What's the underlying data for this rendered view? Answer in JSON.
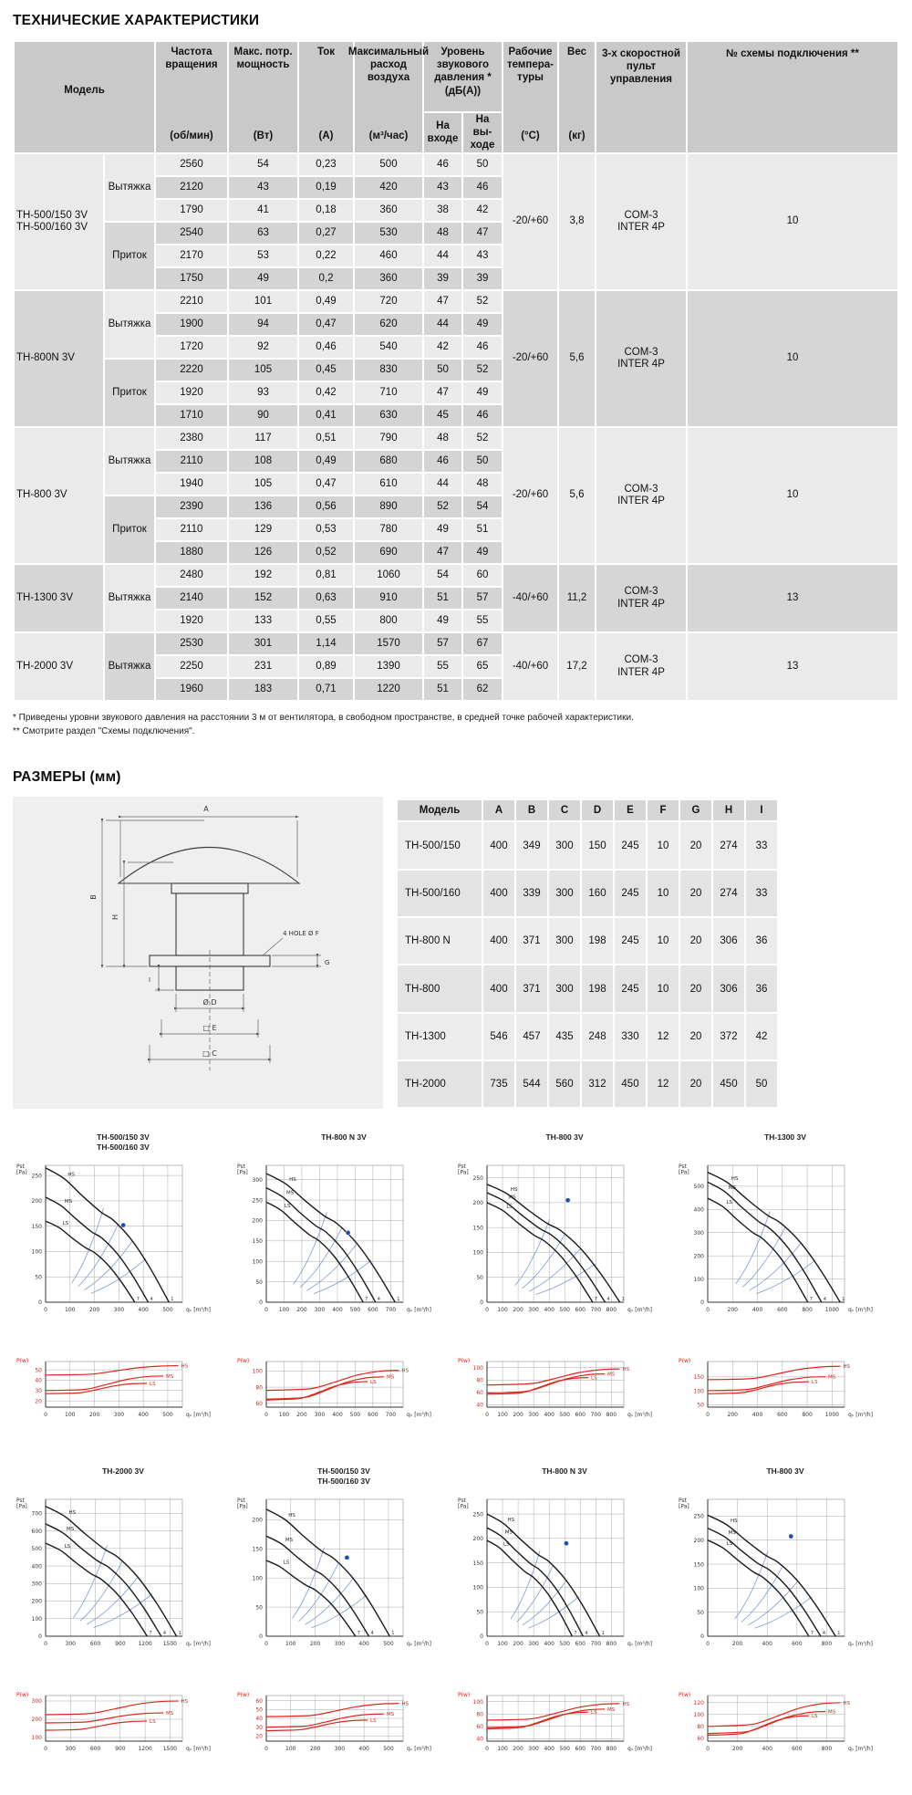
{
  "page": {
    "title": "ТЕХНИЧЕСКИЕ ХАРАКТЕРИСТИКИ",
    "dimensions_title": "РАЗМЕРЫ (мм)",
    "footnote1": "* Приведены уровни звукового давления на расстоянии 3 м от вентилятора, в свободном пространстве, в средней точке рабочей характеристики.",
    "footnote2": "** Смотрите раздел \"Схемы подключения\"."
  },
  "spec_table": {
    "col_headers": {
      "model": "Модель",
      "speed_title": "Частота вращения",
      "speed_unit": "(об/мин)",
      "power_title": "Макс. потр. мощность",
      "power_unit": "(Вт)",
      "current_title": "Ток",
      "current_unit": "(А)",
      "airflow_title": "Максимальный расход воздуха",
      "airflow_unit": "(м³/час)",
      "noise_title": "Уровень звукового давления *",
      "noise_unit": "(дБ(А))",
      "noise_in": "На входе",
      "noise_out": "На вы-ходе",
      "temp_title": "Рабочие темпера-туры",
      "temp_unit": "(°С)",
      "weight_title": "Вес",
      "weight_unit": "(кг)",
      "control_title": "3-х скоростной пульт управления",
      "scheme_title": "№ схемы подключения **"
    },
    "blocks": [
      {
        "model": [
          "ТН-500/150 3V",
          "ТН-500/160 3V"
        ],
        "temp": "-20/+60",
        "weight": "3,8",
        "control": [
          "COM-3",
          "INTER 4P"
        ],
        "scheme": "10",
        "groups": [
          {
            "mode": "Вытяжка",
            "rows": [
              [
                "2560",
                "54",
                "0,23",
                "500",
                "46",
                "50"
              ],
              [
                "2120",
                "43",
                "0,19",
                "420",
                "43",
                "46"
              ],
              [
                "1790",
                "41",
                "0,18",
                "360",
                "38",
                "42"
              ]
            ]
          },
          {
            "mode": "Приток",
            "rows": [
              [
                "2540",
                "63",
                "0,27",
                "530",
                "48",
                "47"
              ],
              [
                "2170",
                "53",
                "0,22",
                "460",
                "44",
                "43"
              ],
              [
                "1750",
                "49",
                "0,2",
                "360",
                "39",
                "39"
              ]
            ]
          }
        ]
      },
      {
        "model": [
          "ТН-800N 3V"
        ],
        "temp": "-20/+60",
        "weight": "5,6",
        "control": [
          "COM-3",
          "INTER 4P"
        ],
        "scheme": "10",
        "groups": [
          {
            "mode": "Вытяжка",
            "rows": [
              [
                "2210",
                "101",
                "0,49",
                "720",
                "47",
                "52"
              ],
              [
                "1900",
                "94",
                "0,47",
                "620",
                "44",
                "49"
              ],
              [
                "1720",
                "92",
                "0,46",
                "540",
                "42",
                "46"
              ]
            ]
          },
          {
            "mode": "Приток",
            "rows": [
              [
                "2220",
                "105",
                "0,45",
                "830",
                "50",
                "52"
              ],
              [
                "1920",
                "93",
                "0,42",
                "710",
                "47",
                "49"
              ],
              [
                "1710",
                "90",
                "0,41",
                "630",
                "45",
                "46"
              ]
            ]
          }
        ]
      },
      {
        "model": [
          "ТН-800 3V"
        ],
        "temp": "-20/+60",
        "weight": "5,6",
        "control": [
          "COM-3",
          "INTER 4P"
        ],
        "scheme": "10",
        "groups": [
          {
            "mode": "Вытяжка",
            "rows": [
              [
                "2380",
                "117",
                "0,51",
                "790",
                "48",
                "52"
              ],
              [
                "2110",
                "108",
                "0,49",
                "680",
                "46",
                "50"
              ],
              [
                "1940",
                "105",
                "0,47",
                "610",
                "44",
                "48"
              ]
            ]
          },
          {
            "mode": "Приток",
            "rows": [
              [
                "2390",
                "136",
                "0,56",
                "890",
                "52",
                "54"
              ],
              [
                "2110",
                "129",
                "0,53",
                "780",
                "49",
                "51"
              ],
              [
                "1880",
                "126",
                "0,52",
                "690",
                "47",
                "49"
              ]
            ]
          }
        ]
      },
      {
        "model": [
          "ТН-1300 3V"
        ],
        "temp": "-40/+60",
        "weight": "11,2",
        "control": [
          "COM-3",
          "INTER 4P"
        ],
        "scheme": "13",
        "groups": [
          {
            "mode": "Вытяжка",
            "rows": [
              [
                "2480",
                "192",
                "0,81",
                "1060",
                "54",
                "60"
              ],
              [
                "2140",
                "152",
                "0,63",
                "910",
                "51",
                "57"
              ],
              [
                "1920",
                "133",
                "0,55",
                "800",
                "49",
                "55"
              ]
            ]
          }
        ]
      },
      {
        "model": [
          "ТН-2000 3V"
        ],
        "temp": "-40/+60",
        "weight": "17,2",
        "control": [
          "COM-3",
          "INTER 4P"
        ],
        "scheme": "13",
        "groups": [
          {
            "mode": "Вытяжка",
            "rows": [
              [
                "2530",
                "301",
                "1,14",
                "1570",
                "57",
                "67"
              ],
              [
                "2250",
                "231",
                "0,89",
                "1390",
                "55",
                "65"
              ],
              [
                "1960",
                "183",
                "0,71",
                "1220",
                "51",
                "62"
              ]
            ]
          }
        ]
      }
    ]
  },
  "dimensions": {
    "headers": [
      "Модель",
      "A",
      "B",
      "C",
      "D",
      "E",
      "F",
      "G",
      "H",
      "I"
    ],
    "rows": [
      [
        "TH-500/150",
        "400",
        "349",
        "300",
        "150",
        "245",
        "10",
        "20",
        "274",
        "33"
      ],
      [
        "TH-500/160",
        "400",
        "339",
        "300",
        "160",
        "245",
        "10",
        "20",
        "274",
        "33"
      ],
      [
        "TH-800 N",
        "400",
        "371",
        "300",
        "198",
        "245",
        "10",
        "20",
        "306",
        "36"
      ],
      [
        "TH-800",
        "400",
        "371",
        "300",
        "198",
        "245",
        "10",
        "20",
        "306",
        "36"
      ],
      [
        "TH-1300",
        "546",
        "457",
        "435",
        "248",
        "330",
        "12",
        "20",
        "372",
        "42"
      ],
      [
        "TH-2000",
        "735",
        "544",
        "560",
        "312",
        "450",
        "12",
        "20",
        "450",
        "50"
      ]
    ],
    "drawing_labels": {
      "A": "A",
      "B": "B",
      "H": "H",
      "holes": "4 HOLE Ø F",
      "G": "G",
      "I": "I",
      "D": "Ø D",
      "E": "□ E",
      "C": "□ C"
    }
  },
  "charts_meta": {
    "pressure_ylabel_lines": [
      "Pst",
      "[Pa]"
    ],
    "power_ylabel": "P(w)",
    "xlabel": "qᵥ [m³/h]",
    "curve_labels": [
      "HS",
      "MS",
      "LS"
    ],
    "curve_end_digits": [
      "1",
      "4",
      "7"
    ]
  },
  "charts": [
    {
      "title": [
        "TH-500/150 3V",
        "TH-500/160 3V"
      ],
      "p": {
        "ymax": 270,
        "yticks": [
          0,
          50,
          100,
          150,
          200,
          250
        ],
        "xmax": 560,
        "xticks": [
          0,
          100,
          200,
          300,
          400,
          500
        ],
        "curves": [
          {
            "name": "HS",
            "p0": 265,
            "q1": 505
          },
          {
            "name": "MS",
            "p0": 207,
            "q1": 420
          },
          {
            "name": "LS",
            "p0": 160,
            "q1": 365
          }
        ],
        "dot": [
          318,
          152
        ]
      },
      "w": {
        "yticks": [
          20,
          30,
          40,
          50
        ],
        "ymin": 14,
        "ymax": 58,
        "curves": [
          {
            "name": "HS",
            "v0": 45,
            "v1": 54
          },
          {
            "name": "MS",
            "v0": 30,
            "v1": 44
          },
          {
            "name": "LS",
            "v0": 27,
            "v1": 37
          }
        ]
      }
    },
    {
      "title": [
        "TH-800 N 3V"
      ],
      "p": {
        "ymax": 335,
        "yticks": [
          0,
          50,
          100,
          150,
          200,
          250,
          300
        ],
        "xmax": 770,
        "xticks": [
          0,
          100,
          200,
          300,
          400,
          500,
          600,
          700
        ],
        "curves": [
          {
            "name": "HS",
            "p0": 315,
            "q1": 725
          },
          {
            "name": "MS",
            "p0": 280,
            "q1": 615
          },
          {
            "name": "LS",
            "p0": 245,
            "q1": 545
          }
        ],
        "dot": [
          460,
          170
        ]
      },
      "w": {
        "yticks": [
          60,
          80,
          100
        ],
        "ymin": 55,
        "ymax": 112,
        "curves": [
          {
            "name": "HS",
            "v0": 76,
            "v1": 101
          },
          {
            "name": "MS",
            "v0": 65,
            "v1": 93
          },
          {
            "name": "LS",
            "v0": 64,
            "v1": 87
          }
        ]
      }
    },
    {
      "title": [
        "TH-800 3V"
      ],
      "p": {
        "ymax": 275,
        "yticks": [
          0,
          50,
          100,
          150,
          200,
          250
        ],
        "xmax": 880,
        "xticks": [
          0,
          100,
          200,
          300,
          400,
          500,
          600,
          700,
          800
        ],
        "curves": [
          {
            "name": "HS",
            "p0": 237,
            "q1": 855
          },
          {
            "name": "MS",
            "p0": 220,
            "q1": 760
          },
          {
            "name": "LS",
            "p0": 200,
            "q1": 680
          }
        ],
        "dot": [
          520,
          205
        ]
      },
      "w": {
        "yticks": [
          40,
          60,
          80,
          100
        ],
        "ymin": 36,
        "ymax": 110,
        "curves": [
          {
            "name": "HS",
            "v0": 72,
            "v1": 98
          },
          {
            "name": "MS",
            "v0": 59,
            "v1": 90
          },
          {
            "name": "LS",
            "v0": 57,
            "v1": 84
          }
        ]
      }
    },
    {
      "title": [
        "TH-1300 3V"
      ],
      "p": {
        "ymax": 590,
        "yticks": [
          0,
          100,
          200,
          300,
          400,
          500
        ],
        "xmax": 1100,
        "xticks": [
          0,
          200,
          400,
          600,
          800,
          1000
        ],
        "curves": [
          {
            "name": "HS",
            "p0": 560,
            "q1": 1065
          },
          {
            "name": "MS",
            "p0": 518,
            "q1": 915
          },
          {
            "name": "LS",
            "p0": 448,
            "q1": 805
          }
        ]
      },
      "w": {
        "yticks": [
          50,
          100,
          150
        ],
        "ymin": 42,
        "ymax": 205,
        "curves": [
          {
            "name": "HS",
            "v0": 140,
            "v1": 188
          },
          {
            "name": "MS",
            "v0": 101,
            "v1": 151
          },
          {
            "name": "LS",
            "v0": 90,
            "v1": 133
          }
        ]
      }
    },
    {
      "title": [
        "TH-2000 3V"
      ],
      "p": {
        "ymax": 780,
        "yticks": [
          0,
          100,
          200,
          300,
          400,
          500,
          600,
          700
        ],
        "xmax": 1650,
        "xticks": [
          0,
          300,
          600,
          900,
          1200,
          1500
        ],
        "curves": [
          {
            "name": "HS",
            "p0": 740,
            "q1": 1580
          },
          {
            "name": "MS",
            "p0": 640,
            "q1": 1395
          },
          {
            "name": "LS",
            "p0": 530,
            "q1": 1225
          }
        ]
      },
      "w": {
        "yticks": [
          100,
          200,
          300
        ],
        "ymin": 80,
        "ymax": 330,
        "curves": [
          {
            "name": "HS",
            "v0": 225,
            "v1": 300
          },
          {
            "name": "MS",
            "v0": 180,
            "v1": 235
          },
          {
            "name": "LS",
            "v0": 140,
            "v1": 190
          }
        ]
      }
    },
    {
      "title": [
        "TH-500/150 3V",
        "TH-500/160 3V"
      ],
      "p": {
        "ymax": 235,
        "yticks": [
          0,
          50,
          100,
          150,
          200
        ],
        "xmax": 560,
        "xticks": [
          0,
          100,
          200,
          300,
          400,
          500
        ],
        "curves": [
          {
            "name": "HS",
            "p0": 218,
            "q1": 505
          },
          {
            "name": "MS",
            "p0": 172,
            "q1": 420
          },
          {
            "name": "LS",
            "p0": 130,
            "q1": 365
          }
        ],
        "dot": [
          330,
          135
        ]
      },
      "w": {
        "yticks": [
          20,
          30,
          40,
          50,
          60
        ],
        "ymin": 14,
        "ymax": 66,
        "curves": [
          {
            "name": "HS",
            "v0": 42,
            "v1": 57
          },
          {
            "name": "MS",
            "v0": 30,
            "v1": 45
          },
          {
            "name": "LS",
            "v0": 26,
            "v1": 38
          }
        ]
      }
    },
    {
      "title": [
        "TH-800 N 3V"
      ],
      "p": {
        "ymax": 280,
        "yticks": [
          0,
          50,
          100,
          150,
          200,
          250
        ],
        "xmax": 880,
        "xticks": [
          0,
          100,
          200,
          300,
          400,
          500,
          600,
          700,
          800
        ],
        "curves": [
          {
            "name": "HS",
            "p0": 250,
            "q1": 725
          },
          {
            "name": "MS",
            "p0": 222,
            "q1": 618
          },
          {
            "name": "LS",
            "p0": 196,
            "q1": 548
          }
        ],
        "dot": [
          510,
          190
        ]
      },
      "w": {
        "yticks": [
          40,
          60,
          80,
          100
        ],
        "ymin": 36,
        "ymax": 110,
        "curves": [
          {
            "name": "HS",
            "v0": 70,
            "v1": 97
          },
          {
            "name": "MS",
            "v0": 58,
            "v1": 88
          },
          {
            "name": "LS",
            "v0": 56,
            "v1": 83
          }
        ]
      }
    },
    {
      "title": [
        "TH-800 3V"
      ],
      "p": {
        "ymax": 285,
        "yticks": [
          0,
          50,
          100,
          150,
          200,
          250
        ],
        "xmax": 920,
        "xticks": [
          0,
          200,
          400,
          600,
          800
        ],
        "curves": [
          {
            "name": "HS",
            "p0": 252,
            "q1": 860
          },
          {
            "name": "MS",
            "p0": 225,
            "q1": 760
          },
          {
            "name": "LS",
            "p0": 200,
            "q1": 680
          }
        ],
        "dot": [
          560,
          208
        ]
      },
      "w": {
        "yticks": [
          60,
          80,
          100,
          120
        ],
        "ymin": 55,
        "ymax": 132,
        "curves": [
          {
            "name": "HS",
            "v0": 80,
            "v1": 120
          },
          {
            "name": "MS",
            "v0": 68,
            "v1": 105
          },
          {
            "name": "LS",
            "v0": 65,
            "v1": 98
          }
        ]
      }
    }
  ]
}
